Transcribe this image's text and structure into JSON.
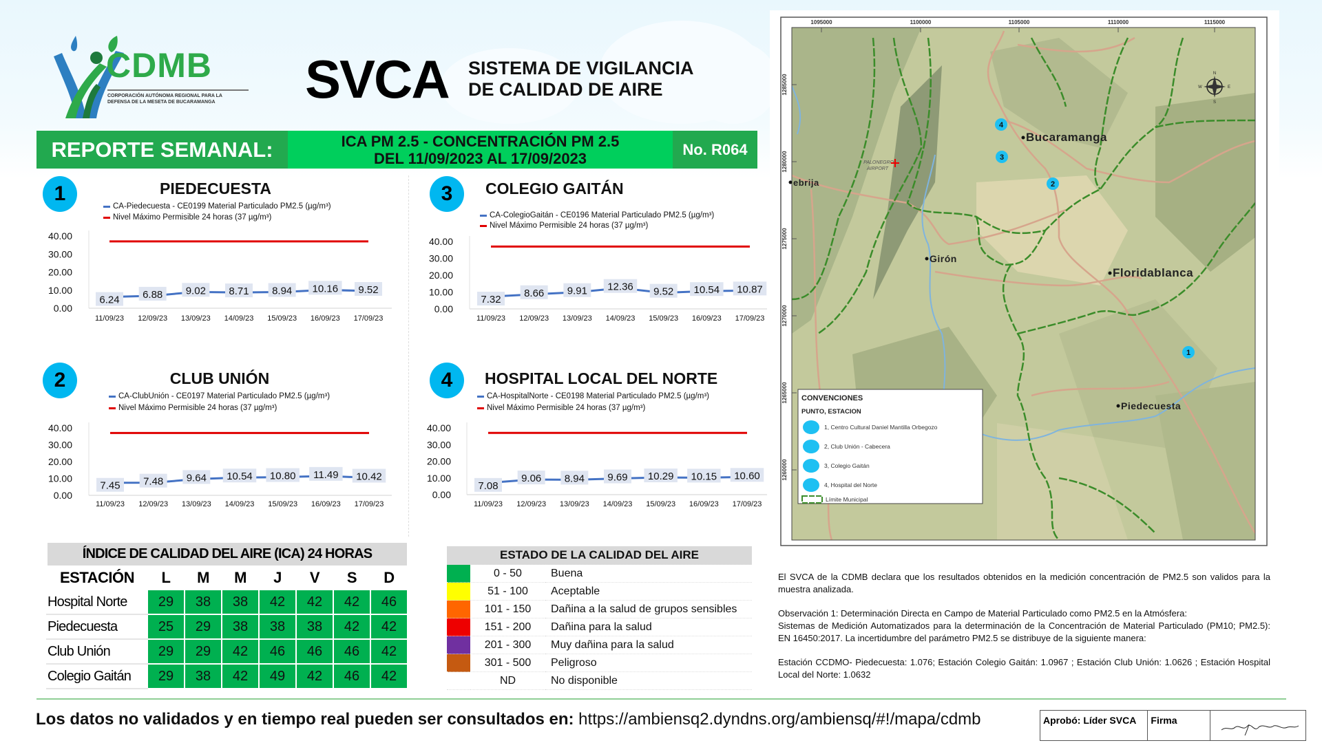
{
  "header": {
    "logo_text": "CDMB",
    "logo_subtitle_1": "CORPORACIÓN AUTÓNOMA REGIONAL PARA LA",
    "logo_subtitle_2": "DEFENSA DE LA MESETA DE BUCARAMANGA",
    "svca": "SVCA",
    "svca_line1": "SISTEMA DE VIGILANCIA",
    "svca_line2": "DE CALIDAD DE AIRE"
  },
  "banner": {
    "left": "REPORTE SEMANAL:",
    "mid_line1": "ICA PM 2.5 - CONCENTRACIÓN PM 2.5",
    "mid_line2": "DEL 11/09/2023 AL 17/09/2023",
    "right": "No. R064"
  },
  "colors": {
    "line": "#4472c4",
    "limit": "#e00000",
    "badge": "#00b7f0",
    "good": "#00b050"
  },
  "chart_data": [
    {
      "type": "line",
      "badge": "1",
      "title": "PIEDECUESTA",
      "categories": [
        "11/09/23",
        "12/09/23",
        "13/09/23",
        "14/09/23",
        "15/09/23",
        "16/09/23",
        "17/09/23"
      ],
      "series": [
        {
          "name": "CA-Piedecuesta - CE0199 Material Particulado PM2.5 (µg/m³)",
          "values": [
            6.24,
            6.88,
            9.02,
            8.71,
            8.94,
            10.16,
            9.52
          ],
          "labels": [
            "6.24",
            "6.88",
            "9.02",
            "8.71",
            "8.94",
            "10.16",
            "9.52"
          ]
        },
        {
          "name": "Nivel Máximo Permisible 24 horas (37 µg/m³)",
          "values": [
            37,
            37,
            37,
            37,
            37,
            37,
            37
          ]
        }
      ],
      "ylim": [
        0,
        40
      ],
      "yticks": [
        "0.00",
        "10.00",
        "20.00",
        "30.00",
        "40.00"
      ],
      "legend": "top"
    },
    {
      "type": "line",
      "badge": "3",
      "title": "COLEGIO GAITÁN",
      "categories": [
        "11/09/23",
        "12/09/23",
        "13/09/23",
        "14/09/23",
        "15/09/23",
        "16/09/23",
        "17/09/23"
      ],
      "series": [
        {
          "name": "CA-ColegioGaitán - CE0196 Material Particulado PM2.5 (µg/m³)",
          "values": [
            7.32,
            8.66,
            9.91,
            12.36,
            9.52,
            10.54,
            10.87
          ],
          "labels": [
            "7.32",
            "8.66",
            "9.91",
            "12.36",
            "9.52",
            "10.54",
            "10.87"
          ]
        },
        {
          "name": "Nivel Máximo Permisible 24 horas (37 µg/m³)",
          "values": [
            37,
            37,
            37,
            37,
            37,
            37,
            37
          ]
        }
      ],
      "ylim": [
        0,
        40
      ],
      "yticks": [
        "0.00",
        "10.00",
        "20.00",
        "30.00",
        "40.00"
      ],
      "legend": "top"
    },
    {
      "type": "line",
      "badge": "2",
      "title": "CLUB UNIÓN",
      "categories": [
        "11/09/23",
        "12/09/23",
        "13/09/23",
        "14/09/23",
        "15/09/23",
        "16/09/23",
        "17/09/23"
      ],
      "series": [
        {
          "name": "CA-ClubUnión - CE0197 Material Particulado PM2.5 (µg/m³)",
          "values": [
            7.45,
            7.48,
            9.64,
            10.54,
            10.8,
            11.49,
            10.42
          ],
          "labels": [
            "7.45",
            "7.48",
            "9.64",
            "10.54",
            "10.80",
            "11.49",
            "10.42"
          ]
        },
        {
          "name": "Nivel Máximo Permisible 24 horas (37 µg/m³)",
          "values": [
            37,
            37,
            37,
            37,
            37,
            37,
            37
          ]
        }
      ],
      "ylim": [
        0,
        40
      ],
      "yticks": [
        "0.00",
        "10.00",
        "20.00",
        "30.00",
        "40.00"
      ],
      "legend": "top"
    },
    {
      "type": "line",
      "badge": "4",
      "title": "HOSPITAL LOCAL DEL NORTE",
      "categories": [
        "11/09/23",
        "12/09/23",
        "13/09/23",
        "14/09/23",
        "15/09/23",
        "16/09/23",
        "17/09/23"
      ],
      "series": [
        {
          "name": "CA-HospitalNorte - CE0198 Material Particulado PM2.5 (µg/m³)",
          "values": [
            7.08,
            9.06,
            8.94,
            9.69,
            10.29,
            10.15,
            10.6
          ],
          "labels": [
            "7.08",
            "9.06",
            "8.94",
            "9.69",
            "10.29",
            "10.15",
            "10.60"
          ]
        },
        {
          "name": "Nivel Máximo Permisible 24 horas (37 µg/m³)",
          "values": [
            37,
            37,
            37,
            37,
            37,
            37,
            37
          ]
        }
      ],
      "ylim": [
        0,
        40
      ],
      "yticks": [
        "0.00",
        "10.00",
        "20.00",
        "30.00",
        "40.00"
      ],
      "legend": "top"
    }
  ],
  "ica_table": {
    "title": "ÍNDICE DE CALIDAD DEL AIRE (ICA) 24 HORAS",
    "station_header": "ESTACIÓN",
    "days": [
      "L",
      "M",
      "M",
      "J",
      "V",
      "S",
      "D"
    ],
    "rows": [
      {
        "station": "Hospital Norte",
        "values": [
          "29",
          "38",
          "38",
          "42",
          "42",
          "42",
          "46"
        ]
      },
      {
        "station": "Piedecuesta",
        "values": [
          "25",
          "29",
          "38",
          "38",
          "38",
          "42",
          "42"
        ]
      },
      {
        "station": "Club Unión",
        "values": [
          "29",
          "29",
          "42",
          "46",
          "46",
          "46",
          "42"
        ]
      },
      {
        "station": "Colegio Gaitán",
        "values": [
          "29",
          "38",
          "42",
          "49",
          "42",
          "46",
          "42"
        ]
      }
    ]
  },
  "estado_table": {
    "title": "ESTADO DE LA CALIDAD DEL AIRE",
    "rows": [
      {
        "color": "#00b050",
        "range": "0 - 50",
        "label": "Buena"
      },
      {
        "color": "#ffff00",
        "range": "51 - 100",
        "label": "Aceptable"
      },
      {
        "color": "#ff6600",
        "range": "101 - 150",
        "label": "Dañina a la salud de grupos sensibles"
      },
      {
        "color": "#ee0000",
        "range": "151 - 200",
        "label": "Dañina para la salud"
      },
      {
        "color": "#7030a0",
        "range": "201 - 300",
        "label": "Muy dañina para la salud"
      },
      {
        "color": "#c55a11",
        "range": "301 - 500",
        "label": "Peligroso"
      },
      {
        "color": "",
        "range": "ND",
        "label": "No disponible"
      }
    ]
  },
  "map": {
    "x_ticks": [
      "1095000",
      "1100000",
      "1105000",
      "1110000",
      "1115000"
    ],
    "y_ticks": [
      "1285000",
      "1280000",
      "1275000",
      "1270000",
      "1265000",
      "1260000"
    ],
    "places": [
      "Bucaramanga",
      "Girón",
      "Floridablanca",
      "Piedecuesta",
      "ebrija"
    ],
    "airport": [
      "PALONEGRO",
      "AIRPORT"
    ],
    "markers": [
      "1",
      "2",
      "3",
      "4"
    ],
    "compass": [
      "N",
      "S",
      "E",
      "W"
    ],
    "legend_title": "CONVENCIONES",
    "legend_subtitle": "PUNTO, ESTACION",
    "legend_items": [
      "1, Centro Cultural Daniel Mantilla Orbegozo",
      "2, Club Unión - Cabecera",
      "3, Colegio Gaitán",
      "4, Hospital del Norte"
    ],
    "legend_boundary": "Límite Municipal"
  },
  "notes": {
    "p1": "El SVCA  de la CDMB declara que los resultados obtenidos en la medición concentración de PM2.5 son validos para la muestra  analizada.",
    "p2a": "Observación 1: Determinación Directa en Campo de Material Particulado como PM2.5 en la Atmósfera:",
    "p2b": "Sistemas de Medición Automatizados para la  determinación de la Concentración de Material Particulado (PM10; PM2.5): EN 16450:2017. La incertidumbre del parámetro PM2.5 se distribuye de la siguiente manera:",
    "p3": "Estación CCDMO- Piedecuesta: 1.076; Estación Colegio Gaitán: 1.0967 ; Estación Club Unión: 1.0626 ; Estación Hospital Local del Norte: 1.0632"
  },
  "footer": {
    "label": "Los datos no validados y en tiempo real pueden ser consultados en:",
    "url": "https://ambiensq2.dyndns.org/ambiensq/#!/mapa/cdmb",
    "approved": "Aprobó: Líder SVCA",
    "signature_label": "Firma"
  }
}
